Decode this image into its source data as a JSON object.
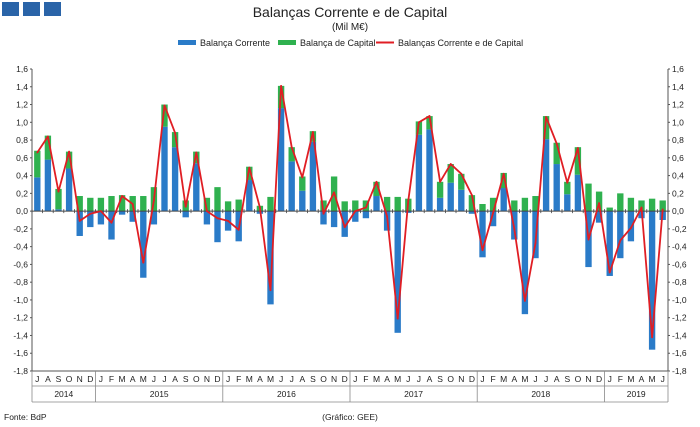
{
  "colors": {
    "corner": "#2a64a8",
    "balanca_corrente": "#2a7bc8",
    "balanca_capital": "#2fb14f",
    "balancas_total": "#e01e24"
  },
  "chart_data": {
    "type": "bar",
    "title": "Balanças Corrente e de Capital",
    "subtitle": "(Mil M€)",
    "source": "Fonte: BdP",
    "credit": "(Gráfico: GEE)",
    "ylim": [
      -1.8,
      1.6
    ],
    "yticks": [
      "1,6",
      "1,4",
      "1,2",
      "1,0",
      "0,8",
      "0,6",
      "0,4",
      "0,2",
      "0,0",
      "-0,2",
      "-0,4",
      "-0,6",
      "-0,8",
      "-1,0",
      "-1,2",
      "-1,4",
      "-1,6",
      "-1,8"
    ],
    "grid": false,
    "legend": "top",
    "categories": [
      "J",
      "A",
      "S",
      "O",
      "N",
      "D",
      "J",
      "F",
      "M",
      "A",
      "M",
      "J",
      "J",
      "A",
      "S",
      "O",
      "N",
      "D",
      "J",
      "F",
      "M",
      "A",
      "M",
      "J",
      "J",
      "A",
      "S",
      "O",
      "N",
      "D",
      "J",
      "F",
      "M",
      "A",
      "M",
      "J",
      "J",
      "A",
      "S",
      "O",
      "N",
      "D",
      "J",
      "F",
      "M",
      "A",
      "M",
      "J",
      "J",
      "A",
      "S",
      "O",
      "N",
      "D",
      "J",
      "F",
      "M",
      "A",
      "M",
      "J"
    ],
    "years": [
      {
        "label": "2014",
        "start": 0,
        "count": 6
      },
      {
        "label": "2015",
        "start": 6,
        "count": 12
      },
      {
        "label": "2016",
        "start": 18,
        "count": 12
      },
      {
        "label": "2017",
        "start": 30,
        "count": 12
      },
      {
        "label": "2018",
        "start": 42,
        "count": 12
      },
      {
        "label": "2019",
        "start": 54,
        "count": 6
      }
    ],
    "series": [
      {
        "name": "Balança Corrente",
        "kind": "stacked-bar",
        "values": [
          0.38,
          0.58,
          0.02,
          0.48,
          -0.28,
          -0.18,
          -0.15,
          -0.32,
          -0.04,
          -0.12,
          -0.75,
          -0.15,
          0.95,
          0.72,
          -0.07,
          0.54,
          -0.15,
          -0.35,
          -0.22,
          -0.34,
          0.35,
          -0.03,
          -1.05,
          1.16,
          0.56,
          0.23,
          0.78,
          -0.15,
          -0.18,
          -0.29,
          -0.12,
          -0.08,
          0.17,
          -0.22,
          -1.37,
          -0.02,
          0.86,
          0.92,
          0.15,
          0.32,
          0.24,
          -0.03,
          -0.52,
          -0.17,
          0.26,
          -0.32,
          -1.16,
          -0.53,
          0.81,
          0.53,
          0.19,
          0.41,
          -0.63,
          -0.13,
          -0.73,
          -0.53,
          -0.34,
          -0.08,
          -1.56,
          -0.1
        ]
      },
      {
        "name": "Balança de Capital",
        "kind": "stacked-bar",
        "values": [
          0.3,
          0.27,
          0.23,
          0.19,
          0.17,
          0.15,
          0.15,
          0.17,
          0.18,
          0.17,
          0.17,
          0.27,
          0.25,
          0.17,
          0.12,
          0.13,
          0.15,
          0.27,
          0.11,
          0.13,
          0.15,
          0.06,
          0.16,
          0.25,
          0.16,
          0.16,
          0.12,
          0.12,
          0.39,
          0.11,
          0.12,
          0.12,
          0.16,
          0.16,
          0.16,
          0.14,
          0.15,
          0.15,
          0.18,
          0.21,
          0.18,
          0.18,
          0.08,
          0.15,
          0.17,
          0.12,
          0.15,
          0.17,
          0.26,
          0.24,
          0.14,
          0.31,
          0.31,
          0.22,
          0.04,
          0.2,
          0.15,
          0.12,
          0.14,
          0.12
        ]
      },
      {
        "name": "Balanças Corrente e de Capital",
        "kind": "line",
        "values": [
          0.66,
          0.84,
          0.22,
          0.67,
          -0.11,
          -0.03,
          0.0,
          -0.13,
          0.17,
          0.08,
          -0.58,
          0.12,
          1.19,
          0.88,
          0.05,
          0.66,
          0.0,
          -0.08,
          -0.11,
          -0.21,
          0.49,
          0.04,
          -0.89,
          1.41,
          0.72,
          0.38,
          0.89,
          -0.03,
          0.21,
          -0.18,
          0.0,
          0.04,
          0.33,
          -0.06,
          -1.21,
          0.12,
          1.0,
          1.07,
          0.33,
          0.53,
          0.42,
          0.18,
          -0.44,
          -0.02,
          0.42,
          -0.2,
          -1.01,
          -0.36,
          1.06,
          0.76,
          0.32,
          0.71,
          -0.32,
          0.09,
          -0.69,
          -0.33,
          -0.19,
          0.04,
          -1.42,
          0.02
        ]
      }
    ]
  }
}
